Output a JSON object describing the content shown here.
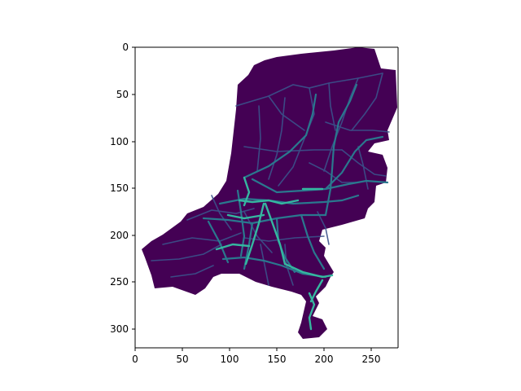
{
  "chart_data": {
    "type": "heatmap",
    "title": "",
    "xlabel": "",
    "ylabel": "",
    "xlim": [
      0,
      280
    ],
    "ylim": [
      320,
      0
    ],
    "x_ticks": [
      "0",
      "50",
      "100",
      "150",
      "200",
      "250"
    ],
    "y_ticks": [
      "0",
      "50",
      "100",
      "150",
      "200",
      "250",
      "300"
    ],
    "grid": false,
    "colormap": "viridis"
  },
  "colors": {
    "background": "#ffffff",
    "land": "#440154",
    "minor_road": "#3b528b",
    "major_road": "#21918c",
    "highway": "#35b779",
    "axis": "#000000"
  }
}
